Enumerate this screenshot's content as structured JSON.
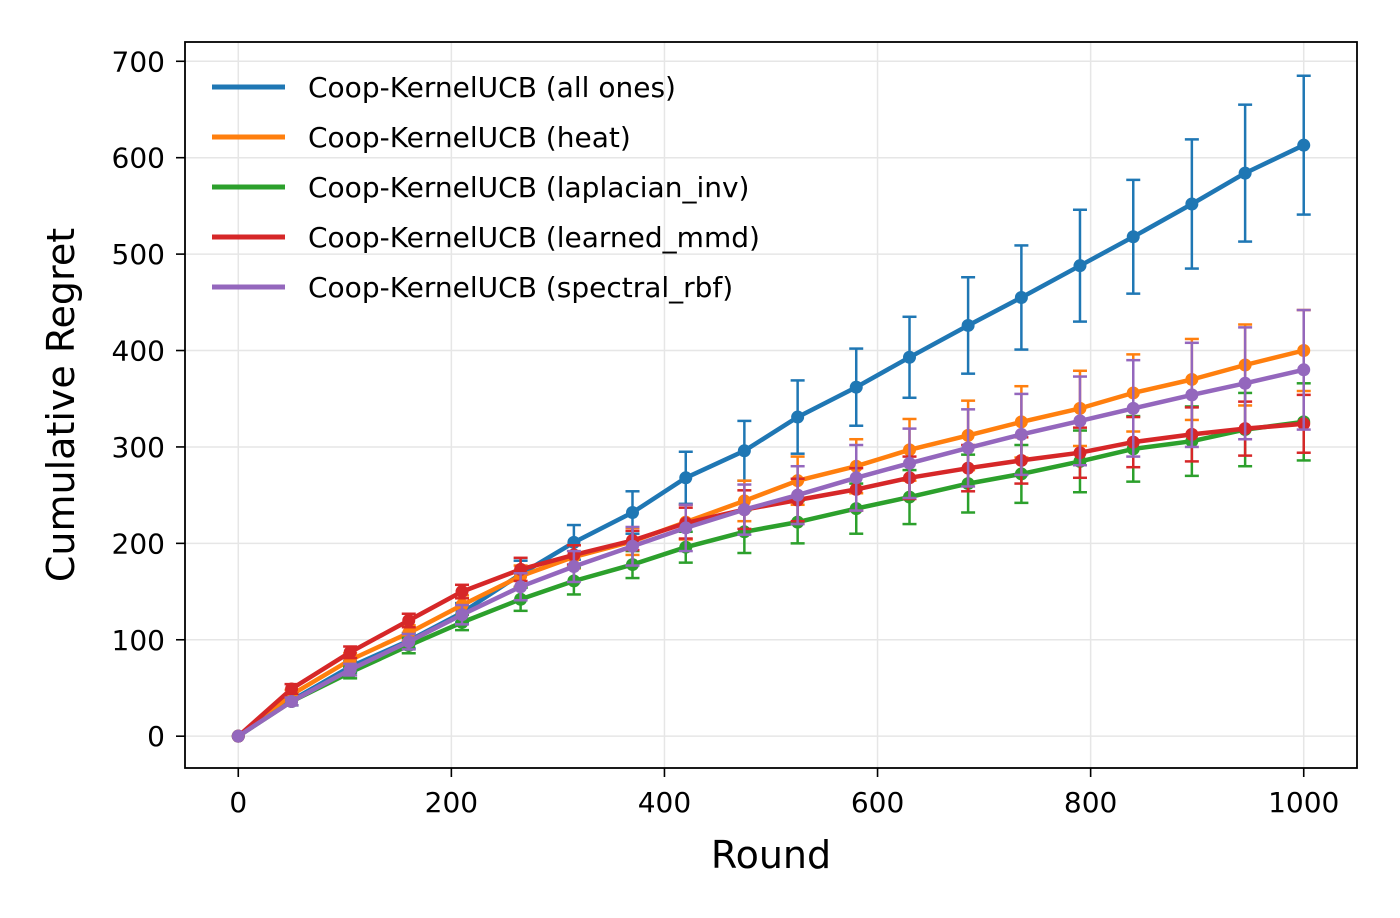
{
  "chart_data": {
    "type": "line",
    "title": "",
    "xlabel": "Round",
    "ylabel": "Cumulative Regret",
    "xlim": [
      -50,
      1050
    ],
    "ylim": [
      -33,
      720
    ],
    "xticks": [
      0,
      200,
      400,
      600,
      800,
      1000
    ],
    "yticks": [
      0,
      100,
      200,
      300,
      400,
      500,
      600,
      700
    ],
    "grid": true,
    "legend_position": "top-left",
    "marker_x": [
      0,
      50,
      105,
      160,
      210,
      265,
      315,
      370,
      420,
      475,
      525,
      580,
      630,
      685,
      735,
      790,
      840,
      895,
      945,
      1000
    ],
    "series": [
      {
        "name": "Coop-KernelUCB (all ones)",
        "color": "#1f77b4",
        "values": [
          0,
          37,
          72,
          99,
          128,
          168,
          201,
          232,
          268,
          296,
          331,
          362,
          393,
          426,
          455,
          488,
          518,
          552,
          584,
          613
        ],
        "errors": [
          0,
          5,
          6,
          8,
          10,
          14,
          18,
          22,
          27,
          31,
          38,
          40,
          42,
          50,
          54,
          58,
          59,
          67,
          71,
          72
        ]
      },
      {
        "name": "Coop-KernelUCB (heat)",
        "color": "#ff7f0e",
        "values": [
          0,
          43,
          79,
          107,
          136,
          166,
          186,
          202,
          222,
          244,
          265,
          280,
          297,
          312,
          326,
          340,
          356,
          370,
          385,
          400
        ],
        "errors": [
          0,
          5,
          7,
          8,
          10,
          11,
          12,
          14,
          18,
          21,
          25,
          28,
          32,
          36,
          37,
          39,
          40,
          42,
          42,
          42
        ]
      },
      {
        "name": "Coop-KernelUCB (laplacian_inv)",
        "color": "#2ca02c",
        "values": [
          0,
          36,
          66,
          94,
          118,
          142,
          161,
          178,
          196,
          212,
          222,
          236,
          248,
          262,
          272,
          285,
          298,
          306,
          318,
          326
        ],
        "errors": [
          0,
          4,
          6,
          8,
          8,
          12,
          14,
          14,
          16,
          22,
          22,
          26,
          28,
          30,
          30,
          32,
          34,
          36,
          38,
          40
        ]
      },
      {
        "name": "Coop-KernelUCB (learned_mmd)",
        "color": "#d62728",
        "values": [
          0,
          49,
          87,
          120,
          150,
          173,
          188,
          203,
          221,
          235,
          245,
          256,
          268,
          278,
          286,
          294,
          305,
          313,
          319,
          324
        ],
        "errors": [
          0,
          5,
          6,
          7,
          7,
          12,
          10,
          10,
          16,
          20,
          22,
          22,
          22,
          24,
          24,
          26,
          26,
          28,
          28,
          30
        ]
      },
      {
        "name": "Coop-KernelUCB (spectral_rbf)",
        "color": "#9467bd",
        "values": [
          0,
          36,
          69,
          98,
          126,
          155,
          176,
          197,
          216,
          235,
          250,
          268,
          283,
          299,
          313,
          327,
          340,
          354,
          366,
          380
        ],
        "errors": [
          0,
          4,
          6,
          8,
          10,
          14,
          16,
          20,
          24,
          26,
          30,
          34,
          36,
          40,
          42,
          46,
          50,
          54,
          58,
          62
        ]
      }
    ]
  }
}
